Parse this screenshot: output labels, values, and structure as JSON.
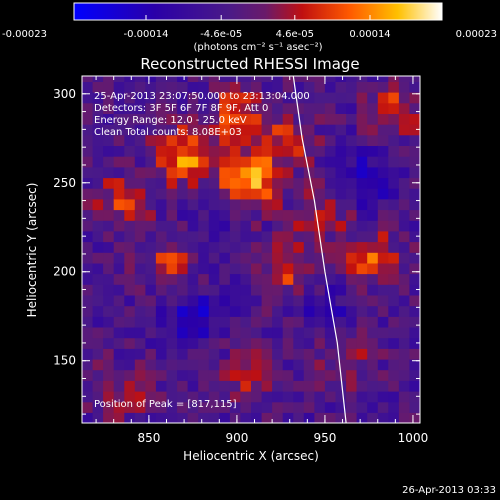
{
  "chart_data": {
    "type": "heatmap",
    "title": "Reconstructed RHESSI Image",
    "xlabel": "Heliocentric X (arcsec)",
    "ylabel": "Heliocentric Y (arcsec)",
    "xlim": [
      812,
      1004
    ],
    "ylim": [
      115,
      310
    ],
    "xticks": [
      850,
      900,
      950,
      1000
    ],
    "yticks": [
      150,
      200,
      250,
      300
    ],
    "colorbar": {
      "range": [
        -0.00023,
        0.00023
      ],
      "tick_values": [
        -0.00023,
        -0.00014,
        -4.6e-05,
        4.6e-05,
        0.00014,
        0.00023
      ],
      "tick_labels": [
        "-0.00023",
        "-0.00014",
        "-4.6e-05",
        "4.6e-05",
        "0.00014",
        "0.00023"
      ],
      "unit_label": "(photons cm⁻² s⁻¹ asec⁻²)"
    },
    "annotations": {
      "time_range": "25-Apr-2013 23:07:50.000 to 23:13:04.000",
      "detectors": "Detectors: 3F 5F 6F 7F 8F 9F, Att 0",
      "energy": "Energy Range: 12.0 - 25.0 keV",
      "clean": "Clean     Total counts: 8.08E+03",
      "peak": "Position of Peak = [817,115]"
    },
    "limb": [
      [
        932,
        310
      ],
      [
        937,
        275
      ],
      [
        944,
        240
      ],
      [
        950,
        200
      ],
      [
        957,
        160
      ],
      [
        962,
        115
      ]
    ],
    "hotspots": [
      {
        "x": 868,
        "y": 262,
        "value": 0.00018
      },
      {
        "x": 903,
        "y": 248,
        "value": 0.00021
      },
      {
        "x": 897,
        "y": 285,
        "value": 0.00014
      },
      {
        "x": 832,
        "y": 236,
        "value": 0.00011
      },
      {
        "x": 860,
        "y": 203,
        "value": 0.0001
      },
      {
        "x": 925,
        "y": 270,
        "value": 0.00012
      },
      {
        "x": 928,
        "y": 198,
        "value": 0.00011
      },
      {
        "x": 973,
        "y": 205,
        "value": 0.00013
      },
      {
        "x": 988,
        "y": 288,
        "value": 0.00012
      },
      {
        "x": 960,
        "y": 150,
        "value": 9e-05
      },
      {
        "x": 905,
        "y": 140,
        "value": 9e-05
      },
      {
        "x": 830,
        "y": 130,
        "value": 8e-05
      },
      {
        "x": 945,
        "y": 232,
        "value": 0.0001
      }
    ],
    "coldspots": [
      {
        "x": 872,
        "y": 172,
        "value": -0.00012
      },
      {
        "x": 970,
        "y": 248,
        "value": -0.0001
      },
      {
        "x": 885,
        "y": 222,
        "value": -6e-05
      },
      {
        "x": 948,
        "y": 175,
        "value": -7e-05
      }
    ]
  },
  "footer": {
    "date": "26-Apr-2013 03:33"
  }
}
